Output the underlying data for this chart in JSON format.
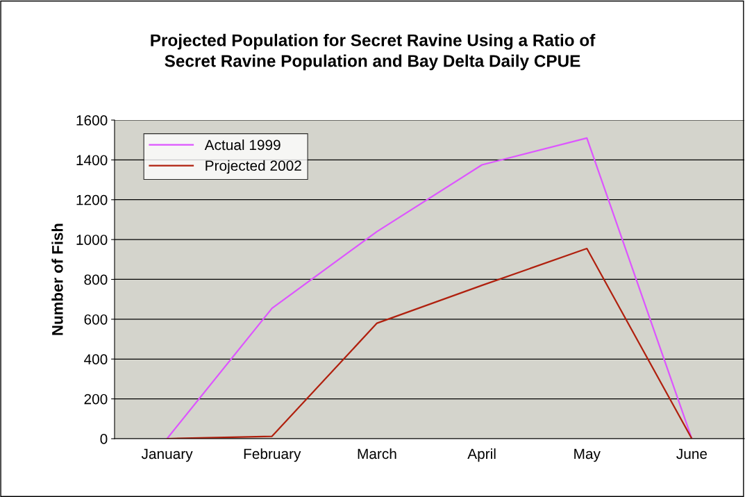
{
  "chart_data": {
    "type": "line",
    "title": "Projected Population for Secret Ravine Using a Ratio of\nSecret Ravine Population and Bay Delta Daily CPUE",
    "ylabel": "Number of Fish",
    "categories": [
      "January",
      "February",
      "March",
      "April",
      "May",
      "June"
    ],
    "series": [
      {
        "name": "Actual 1999",
        "color": "#dd55ff",
        "values": [
          0,
          655,
          1040,
          1375,
          1510,
          0
        ]
      },
      {
        "name": "Projected 2002",
        "color": "#b0200e",
        "values": [
          0,
          12,
          580,
          770,
          955,
          0
        ]
      }
    ],
    "ylim": [
      0,
      1600
    ],
    "yticks": [
      0,
      200,
      400,
      600,
      800,
      1000,
      1200,
      1400,
      1600
    ],
    "grid": "y",
    "legend": "top left",
    "marker": "none",
    "line_style": "solid"
  }
}
